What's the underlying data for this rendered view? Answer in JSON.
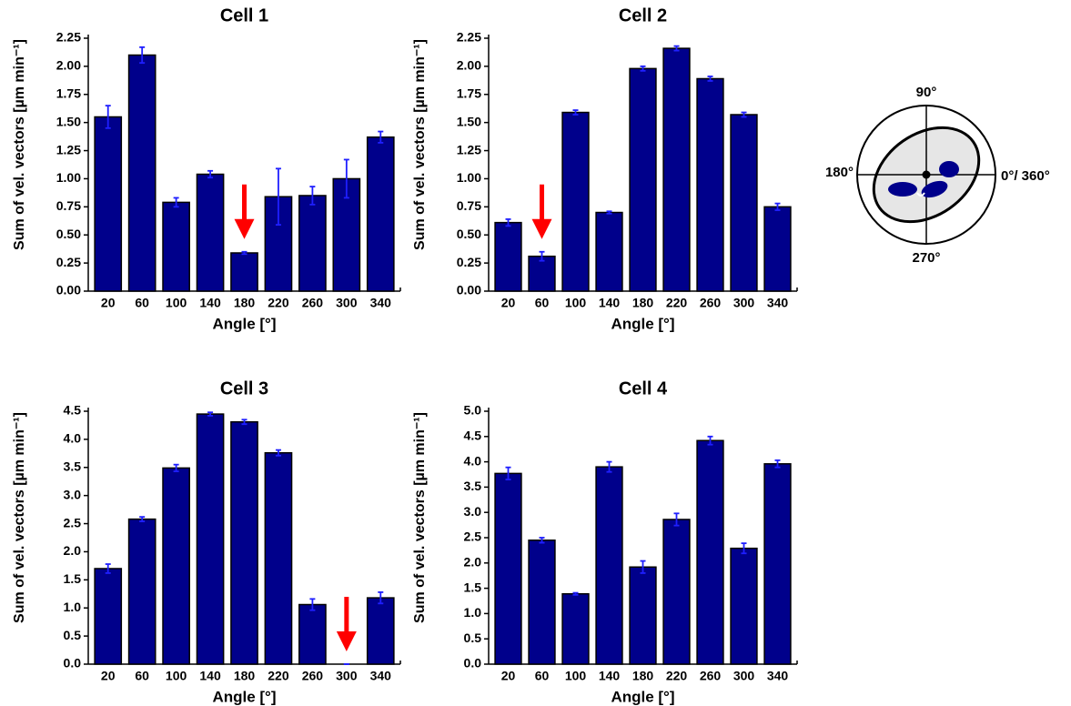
{
  "chart_data": [
    {
      "type": "bar",
      "title": "Cell 1",
      "x_label": "Angle [°]",
      "y_label": "Sum of vel. vectors [µm min⁻¹]",
      "categories": [
        "20",
        "60",
        "100",
        "140",
        "180",
        "220",
        "260",
        "300",
        "340"
      ],
      "values": [
        1.55,
        2.1,
        0.79,
        1.04,
        0.34,
        0.84,
        0.85,
        1.0,
        1.37
      ],
      "errors": [
        0.1,
        0.07,
        0.04,
        0.03,
        0.01,
        0.25,
        0.08,
        0.17,
        0.05
      ],
      "color": "#00008b",
      "error_color": "#1f1fff",
      "arrow_at": "180",
      "ylim": [
        0,
        2.25
      ],
      "yticks": [
        {
          "value": 0,
          "label": "0.00"
        },
        0.25,
        {
          "value": 0.5,
          "label": "0.50"
        },
        0.75,
        {
          "value": 1,
          "label": "1.00"
        },
        1.25,
        {
          "value": 1.5,
          "label": "1.50"
        },
        1.75,
        {
          "value": 2,
          "label": "2.00"
        },
        2.25
      ]
    },
    {
      "type": "bar",
      "title": "Cell 2",
      "x_label": "Angle [°]",
      "y_label": "Sum of vel. vectors [µm min⁻¹]",
      "categories": [
        "20",
        "60",
        "100",
        "140",
        "180",
        "220",
        "260",
        "300",
        "340"
      ],
      "values": [
        0.61,
        0.31,
        1.59,
        0.7,
        1.98,
        2.16,
        1.89,
        1.57,
        0.75
      ],
      "errors": [
        0.03,
        0.04,
        0.02,
        0.01,
        0.02,
        0.02,
        0.02,
        0.02,
        0.03
      ],
      "color": "#00008b",
      "error_color": "#1f1fff",
      "arrow_at": "60",
      "ylim": [
        0,
        2.25
      ],
      "yticks": [
        {
          "value": 0,
          "label": "0.00"
        },
        0.25,
        {
          "value": 0.5,
          "label": "0.50"
        },
        0.75,
        {
          "value": 1,
          "label": "1.00"
        },
        1.25,
        {
          "value": 1.5,
          "label": "1.50"
        },
        1.75,
        {
          "value": 2,
          "label": "2.00"
        },
        2.25
      ]
    },
    {
      "type": "bar",
      "title": "Cell 3",
      "x_label": "Angle [°]",
      "y_label": "Sum of vel. vectors [µm min⁻¹]",
      "categories": [
        "20",
        "60",
        "100",
        "140",
        "180",
        "220",
        "260",
        "300",
        "340"
      ],
      "values": [
        1.7,
        2.58,
        3.49,
        4.45,
        4.31,
        3.76,
        1.06,
        0,
        1.18
      ],
      "errors": [
        0.08,
        0.04,
        0.06,
        0.03,
        0.04,
        0.05,
        0.1,
        0,
        0.1
      ],
      "color": "#00008b",
      "error_color": "#1f1fff",
      "arrow_at": "300",
      "ylim": [
        0,
        4.5
      ],
      "yticks": [
        {
          "value": 0,
          "label": "0.0"
        },
        0.5,
        {
          "value": 1,
          "label": "1.0"
        },
        1.5,
        {
          "value": 2,
          "label": "2.0"
        },
        2.5,
        {
          "value": 3,
          "label": "3.0"
        },
        3.5,
        {
          "value": 4,
          "label": "4.0"
        },
        4.5
      ]
    },
    {
      "type": "bar",
      "title": "Cell 4",
      "x_label": "Angle [°]",
      "y_label": "Sum of vel. vectors [µm min⁻¹]",
      "categories": [
        "20",
        "60",
        "100",
        "140",
        "180",
        "220",
        "260",
        "300",
        "340"
      ],
      "values": [
        3.77,
        2.45,
        1.39,
        3.9,
        1.92,
        2.86,
        4.42,
        2.29,
        3.96
      ],
      "errors": [
        0.12,
        0.05,
        0.02,
        0.1,
        0.12,
        0.12,
        0.08,
        0.1,
        0.07
      ],
      "color": "#00008b",
      "error_color": "#1f1fff",
      "ylim": [
        0,
        5
      ],
      "yticks": [
        {
          "value": 0,
          "label": "0.0"
        },
        0.5,
        {
          "value": 1,
          "label": "1.0"
        },
        1.5,
        {
          "value": 2,
          "label": "2.0"
        },
        2.5,
        {
          "value": 3,
          "label": "3.0"
        },
        3.5,
        {
          "value": 4,
          "label": "4.0"
        },
        4.5,
        {
          "value": 5,
          "label": "5.0"
        }
      ]
    }
  ],
  "diagram": {
    "labels": [
      "90°",
      "180°",
      "0°/ 360°",
      "270°"
    ]
  }
}
